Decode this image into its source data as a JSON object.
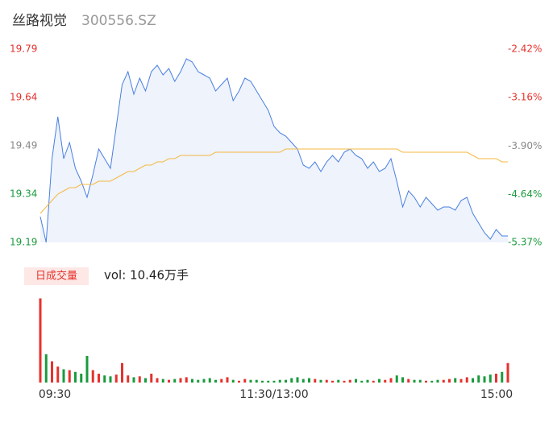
{
  "chart_data": {
    "type": "intraday",
    "title": "丝路视觉",
    "subtitle": "300556.SZ",
    "xlim": [
      0,
      80
    ],
    "xticks": [
      {
        "value": 0,
        "label": "09:30"
      },
      {
        "value": 40,
        "label": "11:30/13:00"
      },
      {
        "value": 80,
        "label": "15:00"
      }
    ],
    "ylim": [
      19.19,
      19.79
    ],
    "yticks": [
      19.79,
      19.64,
      19.49,
      19.34,
      19.19
    ],
    "ytick_colors": [
      "#e5322d",
      "#e5322d",
      "#888888",
      "#1a9a3c",
      "#1a9a3c"
    ],
    "y2lim": [
      -5.37,
      -2.42
    ],
    "y2ticks": [
      {
        "value": -2.42,
        "label": "-2.42%"
      },
      {
        "value": -3.16,
        "label": "-3.16%"
      },
      {
        "value": -3.9,
        "label": "-3.90%"
      },
      {
        "value": -4.64,
        "label": "-4.64%"
      },
      {
        "value": -5.37,
        "label": "-5.37%"
      }
    ],
    "series": [
      {
        "name": "price",
        "color": "#4a7fe0",
        "values": [
          19.27,
          19.19,
          19.45,
          19.58,
          19.45,
          19.5,
          19.42,
          19.38,
          19.33,
          19.4,
          19.48,
          19.45,
          19.42,
          19.55,
          19.68,
          19.72,
          19.65,
          19.7,
          19.66,
          19.72,
          19.74,
          19.71,
          19.73,
          19.69,
          19.72,
          19.76,
          19.75,
          19.72,
          19.71,
          19.7,
          19.66,
          19.68,
          19.7,
          19.63,
          19.66,
          19.7,
          19.69,
          19.66,
          19.63,
          19.6,
          19.55,
          19.53,
          19.52,
          19.5,
          19.48,
          19.43,
          19.42,
          19.44,
          19.41,
          19.44,
          19.46,
          19.44,
          19.47,
          19.48,
          19.46,
          19.45,
          19.42,
          19.44,
          19.41,
          19.42,
          19.45,
          19.38,
          19.3,
          19.35,
          19.33,
          19.3,
          19.33,
          19.31,
          19.29,
          19.3,
          19.3,
          19.29,
          19.32,
          19.33,
          19.28,
          19.25,
          19.22,
          19.2,
          19.23,
          19.21,
          19.21
        ]
      },
      {
        "name": "avg",
        "color": "#f5b942",
        "values": [
          19.28,
          19.3,
          19.32,
          19.34,
          19.35,
          19.36,
          19.36,
          19.37,
          19.37,
          19.37,
          19.38,
          19.38,
          19.38,
          19.39,
          19.4,
          19.41,
          19.41,
          19.42,
          19.43,
          19.43,
          19.44,
          19.44,
          19.45,
          19.45,
          19.46,
          19.46,
          19.46,
          19.46,
          19.46,
          19.46,
          19.47,
          19.47,
          19.47,
          19.47,
          19.47,
          19.47,
          19.47,
          19.47,
          19.47,
          19.47,
          19.47,
          19.47,
          19.48,
          19.48,
          19.48,
          19.48,
          19.48,
          19.48,
          19.48,
          19.48,
          19.48,
          19.48,
          19.48,
          19.48,
          19.48,
          19.48,
          19.48,
          19.48,
          19.48,
          19.48,
          19.48,
          19.48,
          19.47,
          19.47,
          19.47,
          19.47,
          19.47,
          19.47,
          19.47,
          19.47,
          19.47,
          19.47,
          19.47,
          19.47,
          19.46,
          19.45,
          19.45,
          19.45,
          19.45,
          19.44,
          19.44
        ]
      }
    ],
    "volume": {
      "label": "日成交量",
      "summary": "vol: 10.46万手",
      "up_color": "#e5322d",
      "down_color": "#1a9a3c",
      "ylim": [
        0,
        100
      ],
      "values": [
        95,
        32,
        24,
        18,
        15,
        14,
        12,
        10,
        30,
        14,
        10,
        8,
        7,
        9,
        22,
        8,
        6,
        7,
        5,
        10,
        5,
        4,
        3,
        4,
        5,
        6,
        4,
        3,
        4,
        5,
        3,
        4,
        6,
        3,
        2,
        4,
        3,
        3,
        2,
        2,
        2,
        3,
        3,
        5,
        6,
        4,
        5,
        4,
        3,
        3,
        2,
        3,
        2,
        3,
        4,
        2,
        3,
        2,
        4,
        3,
        5,
        8,
        6,
        4,
        3,
        3,
        2,
        2,
        3,
        3,
        4,
        5,
        4,
        6,
        5,
        8,
        7,
        9,
        10,
        12,
        22
      ]
    }
  }
}
